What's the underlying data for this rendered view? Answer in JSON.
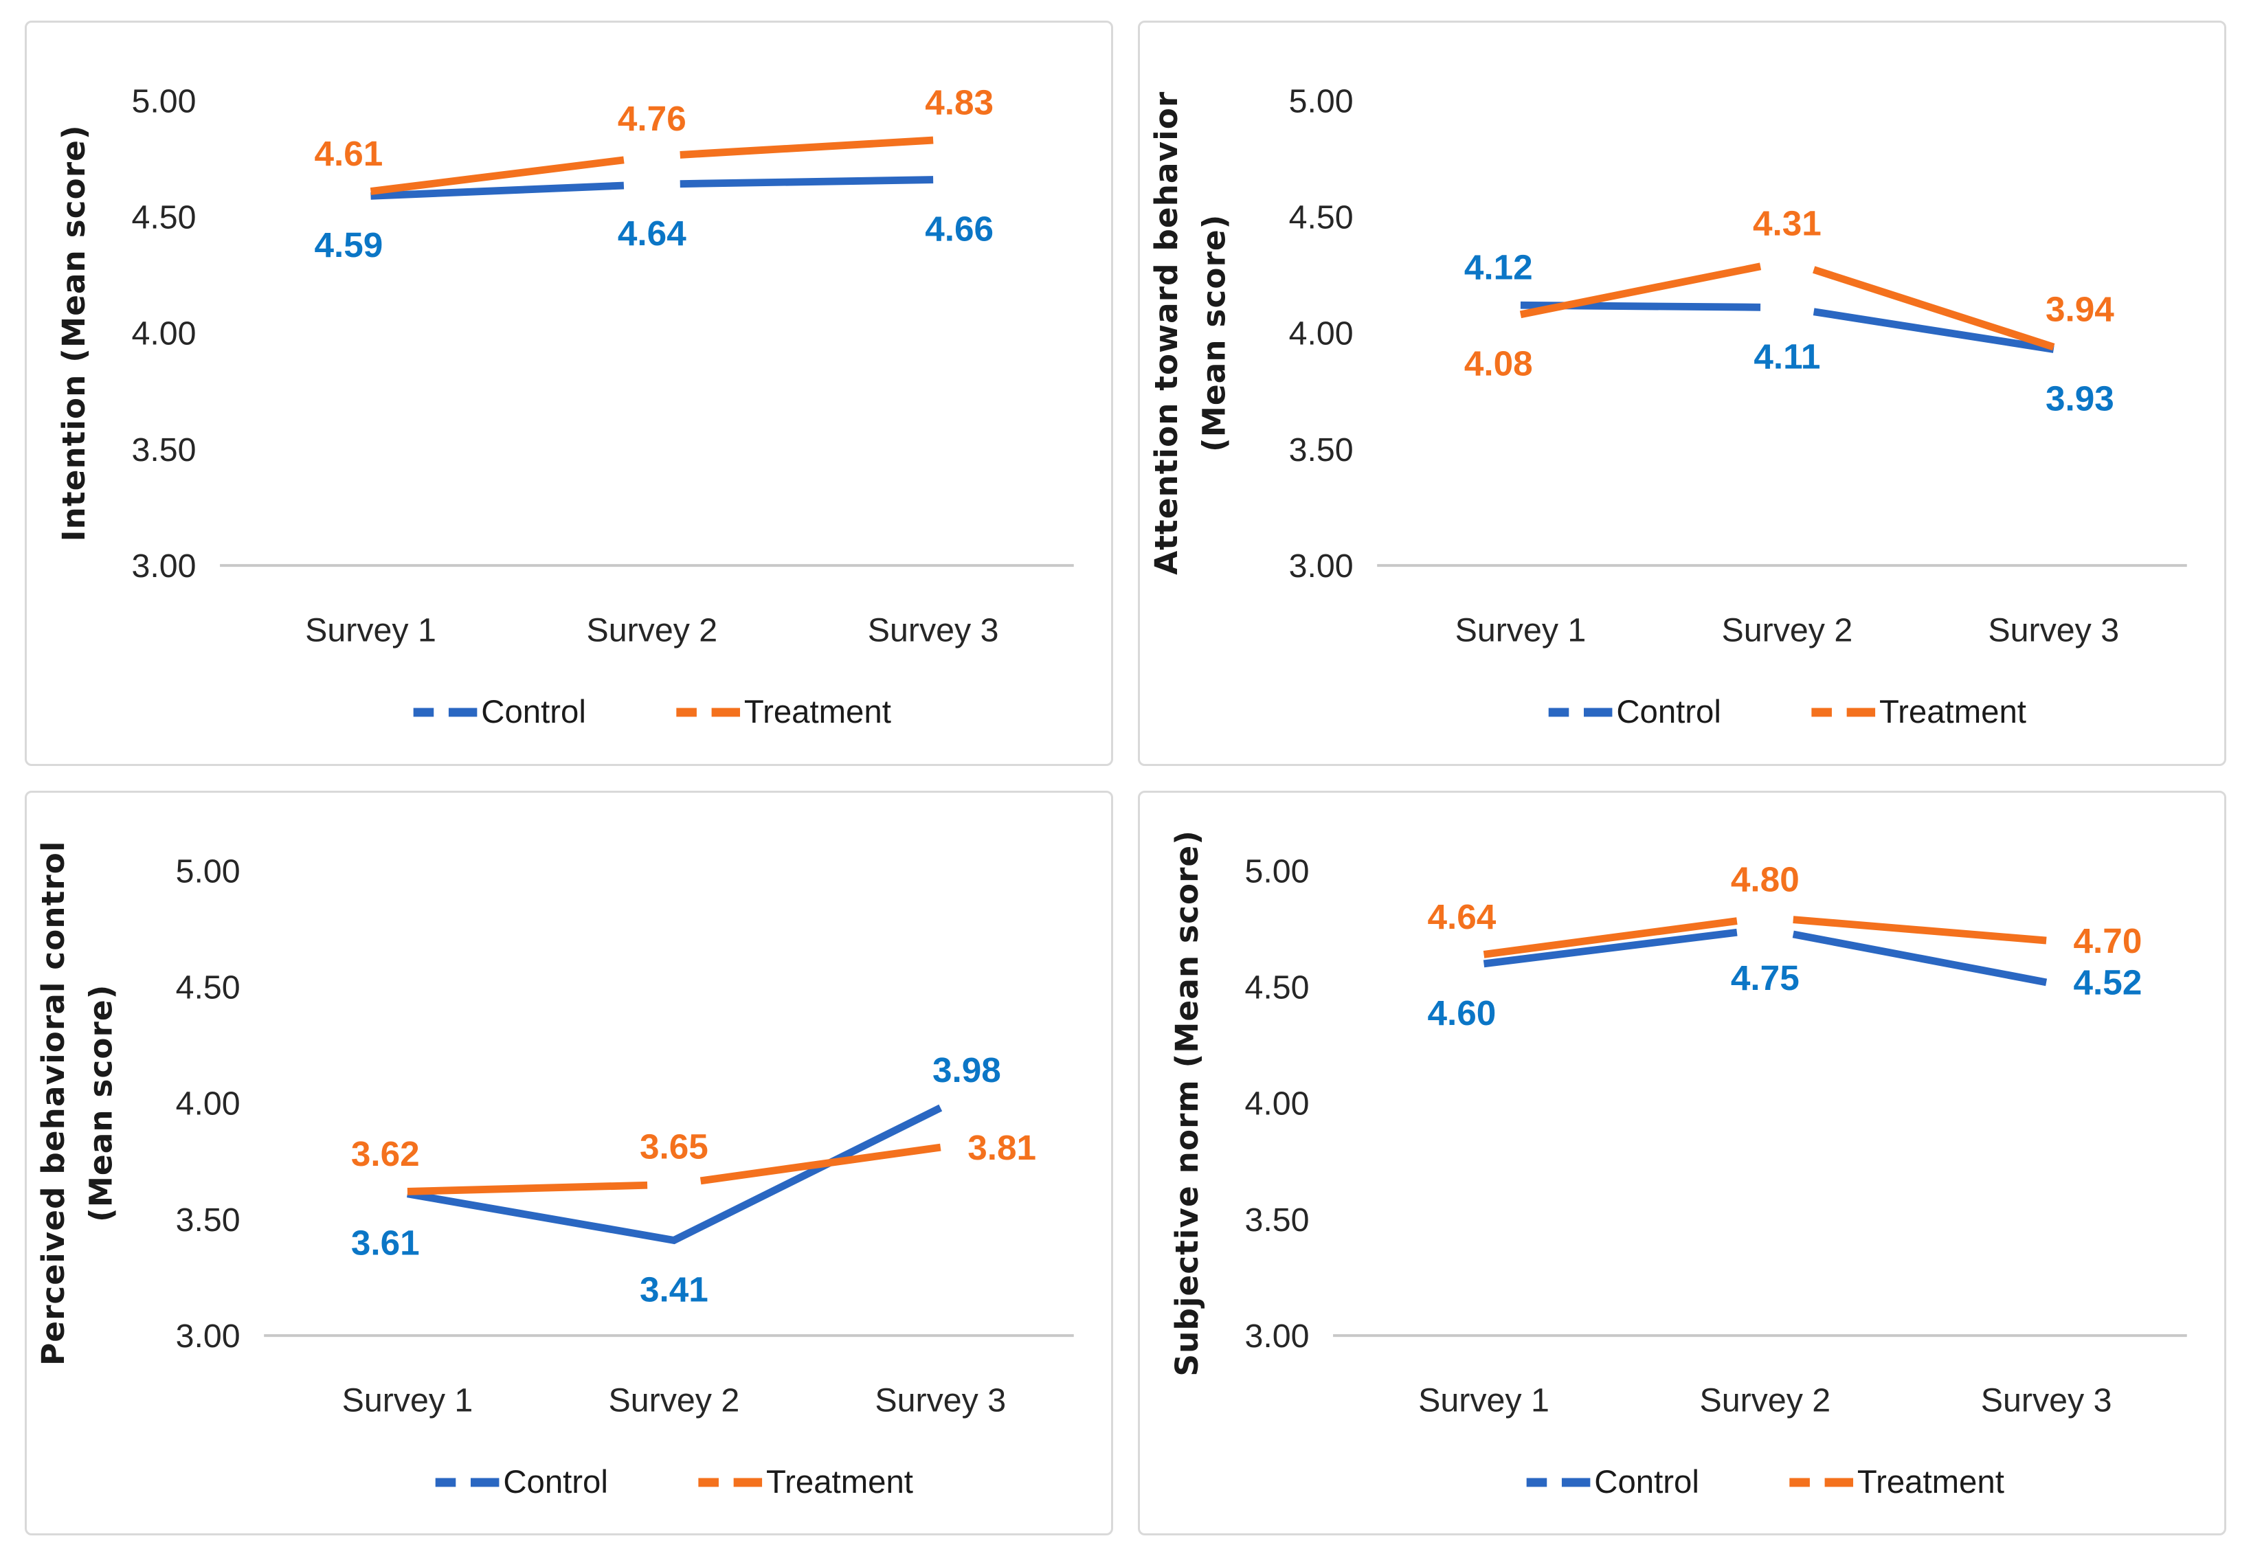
{
  "page": {
    "background": "#ffffff"
  },
  "colors": {
    "control_line": "#2A67C2",
    "control_label": "#0B76C6",
    "treatment_line": "#F4711D",
    "treatment_label": "#F4711D",
    "axis_line": "#C8C8C8",
    "panel_border": "#D9D9D9",
    "tick_text": "#262626"
  },
  "legend": {
    "items": [
      {
        "label": "Control",
        "series": "control"
      },
      {
        "label": "Treatment",
        "series": "treatment"
      }
    ]
  },
  "chart_data": [
    {
      "id": "intention",
      "type": "line",
      "ylabel_lines": [
        "Intention (Mean score)"
      ],
      "categories": [
        "Survey 1",
        "Survey 2",
        "Survey 3"
      ],
      "ylim": [
        3.0,
        5.0
      ],
      "ytick_labels": [
        "5.00",
        "4.50",
        "4.00",
        "3.50",
        "3.00"
      ],
      "grid": false,
      "legend_position": "bottom",
      "wide_left": false,
      "series": [
        {
          "name": "Control",
          "key": "control",
          "values": [
            4.59,
            4.64,
            4.66
          ],
          "labels": [
            "4.59",
            "4.64",
            "4.66"
          ],
          "label_pos": [
            "bl",
            "b",
            "br"
          ],
          "mid_gap": true
        },
        {
          "name": "Treatment",
          "key": "treatment",
          "values": [
            4.61,
            4.76,
            4.83
          ],
          "labels": [
            "4.61",
            "4.76",
            "4.83"
          ],
          "label_pos": [
            "al",
            "a",
            "ar"
          ],
          "mid_gap": true
        }
      ]
    },
    {
      "id": "attention",
      "type": "line",
      "ylabel_lines": [
        "Attention toward behavior",
        "(Mean score)"
      ],
      "categories": [
        "Survey 1",
        "Survey 2",
        "Survey 3"
      ],
      "ylim": [
        3.0,
        5.0
      ],
      "ytick_labels": [
        "5.00",
        "4.50",
        "4.00",
        "3.50",
        "3.00"
      ],
      "grid": false,
      "legend_position": "bottom",
      "wide_left": true,
      "series": [
        {
          "name": "Control",
          "key": "control",
          "values": [
            4.12,
            4.11,
            3.93
          ],
          "labels": [
            "4.12",
            "4.11",
            "3.93"
          ],
          "label_pos": [
            "al",
            "b",
            "br"
          ],
          "mid_gap": true
        },
        {
          "name": "Treatment",
          "key": "treatment",
          "values": [
            4.08,
            4.31,
            3.94
          ],
          "labels": [
            "4.08",
            "4.31",
            "3.94"
          ],
          "label_pos": [
            "bl",
            "a",
            "ar"
          ],
          "mid_gap": true
        }
      ]
    },
    {
      "id": "perceived-behavioral-control",
      "type": "line",
      "ylabel_lines": [
        "Perceived behavioral control",
        "(Mean score)"
      ],
      "categories": [
        "Survey 1",
        "Survey 2",
        "Survey 3"
      ],
      "ylim": [
        3.0,
        5.0
      ],
      "ytick_labels": [
        "5.00",
        "4.50",
        "4.00",
        "3.50",
        "3.00"
      ],
      "grid": false,
      "legend_position": "bottom",
      "wide_left": true,
      "series": [
        {
          "name": "Control",
          "key": "control",
          "values": [
            3.61,
            3.41,
            3.98
          ],
          "labels": [
            "3.61",
            "3.41",
            "3.98"
          ],
          "label_pos": [
            "bl",
            "b",
            "ar"
          ],
          "mid_gap": false
        },
        {
          "name": "Treatment",
          "key": "treatment",
          "values": [
            3.62,
            3.65,
            3.81
          ],
          "labels": [
            "3.62",
            "3.65",
            "3.81"
          ],
          "label_pos": [
            "al",
            "a",
            "r"
          ],
          "mid_gap": true
        }
      ]
    },
    {
      "id": "subjective-norm",
      "type": "line",
      "ylabel_lines": [
        "Subjective norm (Mean score)"
      ],
      "categories": [
        "Survey 1",
        "Survey 2",
        "Survey 3"
      ],
      "ylim": [
        3.0,
        5.0
      ],
      "ytick_labels": [
        "5.00",
        "4.50",
        "4.00",
        "3.50",
        "3.00"
      ],
      "grid": false,
      "legend_position": "bottom",
      "wide_left": false,
      "series": [
        {
          "name": "Control",
          "key": "control",
          "values": [
            4.6,
            4.75,
            4.52
          ],
          "labels": [
            "4.60",
            "4.75",
            "4.52"
          ],
          "label_pos": [
            "bl",
            "b",
            "r"
          ],
          "mid_gap": true
        },
        {
          "name": "Treatment",
          "key": "treatment",
          "values": [
            4.64,
            4.8,
            4.7
          ],
          "labels": [
            "4.64",
            "4.80",
            "4.70"
          ],
          "label_pos": [
            "al",
            "a",
            "r"
          ],
          "mid_gap": true
        }
      ]
    }
  ]
}
